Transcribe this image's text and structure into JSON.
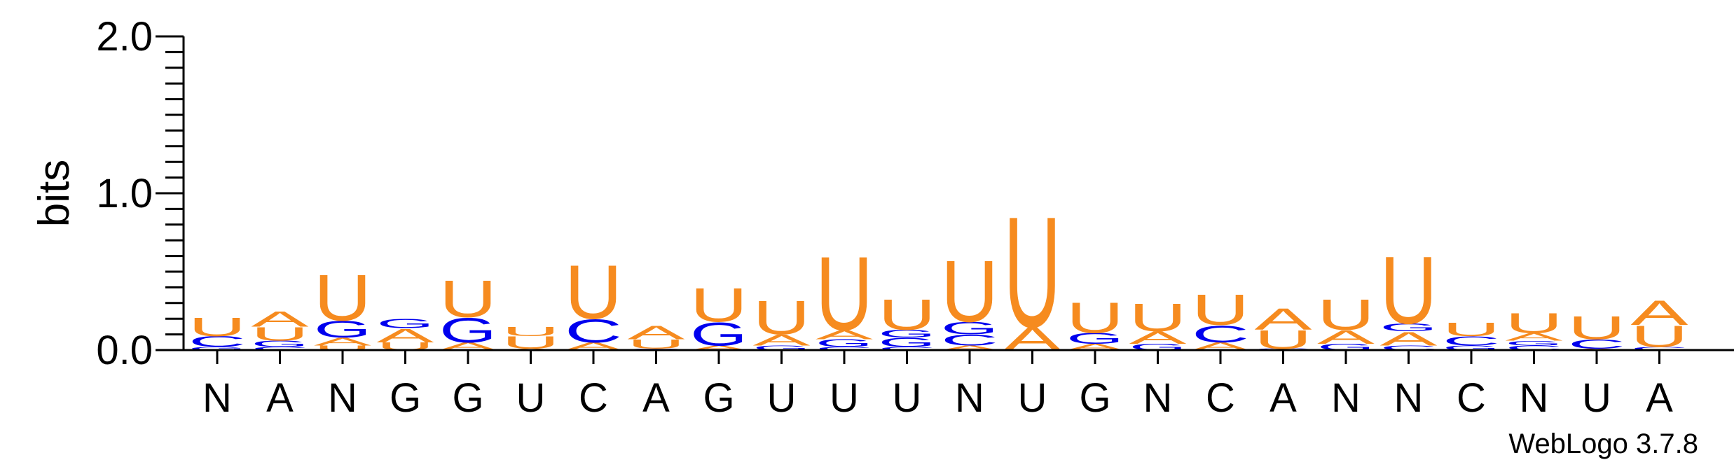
{
  "chart_data": {
    "type": "sequence-logo",
    "ylabel": "bits",
    "ylim": [
      0,
      2.0
    ],
    "yticks": [
      "0.0",
      "1.0",
      "2.0"
    ],
    "credit": "WebLogo 3.7.8",
    "colors": {
      "U": "#f68b1f",
      "A": "#f68b1f",
      "G": "#0000ee",
      "C": "#0000ee"
    },
    "consensus": [
      "N",
      "A",
      "N",
      "G",
      "G",
      "U",
      "C",
      "A",
      "G",
      "U",
      "U",
      "U",
      "N",
      "U",
      "G",
      "N",
      "C",
      "A",
      "N",
      "N",
      "C",
      "N",
      "U",
      "A"
    ],
    "positions": [
      {
        "letters": [
          [
            "G",
            0.02
          ],
          [
            "C",
            0.07
          ],
          [
            "U",
            0.12
          ]
        ]
      },
      {
        "letters": [
          [
            "C",
            0.02
          ],
          [
            "G",
            0.04
          ],
          [
            "U",
            0.09
          ],
          [
            "A",
            0.1
          ]
        ]
      },
      {
        "letters": [
          [
            "U",
            0.03
          ],
          [
            "A",
            0.05
          ],
          [
            "G",
            0.11
          ],
          [
            "U",
            0.3
          ]
        ]
      },
      {
        "letters": [
          [
            "U",
            0.05
          ],
          [
            "A",
            0.09
          ],
          [
            "G",
            0.06
          ]
        ]
      },
      {
        "letters": [
          [
            "A",
            0.05
          ],
          [
            "G",
            0.16
          ],
          [
            "U",
            0.24
          ]
        ]
      },
      {
        "letters": [
          [
            "A",
            0.01
          ],
          [
            "U",
            0.08
          ],
          [
            "U",
            0.06
          ]
        ]
      },
      {
        "letters": [
          [
            "A",
            0.05
          ],
          [
            "C",
            0.15
          ],
          [
            "U",
            0.35
          ]
        ]
      },
      {
        "letters": [
          [
            "G",
            0.01
          ],
          [
            "U",
            0.06
          ],
          [
            "A",
            0.09
          ]
        ]
      },
      {
        "letters": [
          [
            "A",
            0.03
          ],
          [
            "G",
            0.15
          ],
          [
            "U",
            0.22
          ]
        ]
      },
      {
        "letters": [
          [
            "G",
            0.03
          ],
          [
            "A",
            0.07
          ],
          [
            "U",
            0.22
          ]
        ]
      },
      {
        "letters": [
          [
            "C",
            0.02
          ],
          [
            "G",
            0.05
          ],
          [
            "A",
            0.06
          ],
          [
            "U",
            0.48
          ]
        ]
      },
      {
        "letters": [
          [
            "C",
            0.02
          ],
          [
            "G",
            0.06
          ],
          [
            "G",
            0.05
          ],
          [
            "U",
            0.2
          ]
        ]
      },
      {
        "letters": [
          [
            "A",
            0.03
          ],
          [
            "C",
            0.07
          ],
          [
            "G",
            0.08
          ],
          [
            "U",
            0.4
          ]
        ]
      },
      {
        "letters": [
          [
            "A",
            0.15
          ],
          [
            "U",
            0.72
          ]
        ]
      },
      {
        "letters": [
          [
            "A",
            0.04
          ],
          [
            "G",
            0.07
          ],
          [
            "U",
            0.2
          ]
        ]
      },
      {
        "letters": [
          [
            "G",
            0.04
          ],
          [
            "A",
            0.08
          ],
          [
            "U",
            0.18
          ]
        ]
      },
      {
        "letters": [
          [
            "A",
            0.05
          ],
          [
            "C",
            0.11
          ],
          [
            "U",
            0.2
          ]
        ]
      },
      {
        "letters": [
          [
            "C",
            0.01
          ],
          [
            "U",
            0.12
          ],
          [
            "A",
            0.14
          ]
        ]
      },
      {
        "letters": [
          [
            "G",
            0.04
          ],
          [
            "A",
            0.09
          ],
          [
            "U",
            0.2
          ]
        ]
      },
      {
        "letters": [
          [
            "C",
            0.03
          ],
          [
            "A",
            0.09
          ],
          [
            "G",
            0.05
          ],
          [
            "U",
            0.44
          ]
        ]
      },
      {
        "letters": [
          [
            "G",
            0.03
          ],
          [
            "C",
            0.06
          ],
          [
            "U",
            0.09
          ]
        ]
      },
      {
        "letters": [
          [
            "C",
            0.03
          ],
          [
            "G",
            0.03
          ],
          [
            "A",
            0.05
          ],
          [
            "U",
            0.13
          ]
        ]
      },
      {
        "letters": [
          [
            "A",
            0.01
          ],
          [
            "C",
            0.06
          ],
          [
            "U",
            0.15
          ]
        ]
      },
      {
        "letters": [
          [
            "C",
            0.02
          ],
          [
            "U",
            0.14
          ],
          [
            "A",
            0.16
          ]
        ]
      }
    ]
  }
}
